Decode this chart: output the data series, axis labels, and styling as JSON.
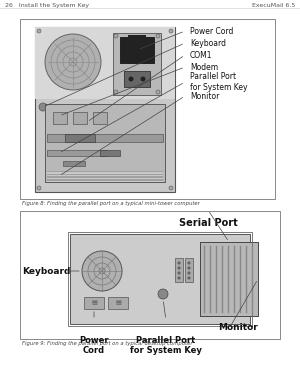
{
  "bg_color": "#ffffff",
  "page_bg": "#ffffff",
  "white": "#ffffff",
  "header_left": "26   Install the System Key",
  "header_right": "ExecuMail 6.5",
  "fig1_caption": "Figure 8: Finding the parallel port on a typical mini-tower computer",
  "fig2_caption": "Figure 9: Finding the parallel port on a typical desktop computer",
  "fig1_labels": [
    "Power Cord",
    "Keyboard",
    "COM1",
    "Modem",
    "Parallel Port\nfor System Key",
    "Monitor"
  ],
  "fig2_label_top": "Serial Port",
  "fig2_label_left": "Keyboard",
  "fig2_label_power": "Power\nCord",
  "fig2_label_parallel": "Parallel Port\nfor System Key",
  "fig2_label_monitor": "Monitor"
}
